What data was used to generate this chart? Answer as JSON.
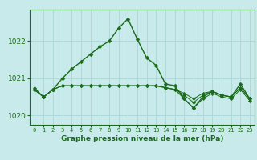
{
  "title": "Graphe pression niveau de la mer (hPa)",
  "x_labels": [
    "0",
    "1",
    "2",
    "3",
    "4",
    "5",
    "6",
    "7",
    "8",
    "9",
    "10",
    "11",
    "12",
    "13",
    "14",
    "15",
    "16",
    "17",
    "18",
    "19",
    "20",
    "21",
    "22",
    "23"
  ],
  "hours": [
    0,
    1,
    2,
    3,
    4,
    5,
    6,
    7,
    8,
    9,
    10,
    11,
    12,
    13,
    14,
    15,
    16,
    17,
    18,
    19,
    20,
    21,
    22,
    23
  ],
  "line_main": [
    1020.7,
    1020.5,
    1020.7,
    1021.0,
    1021.25,
    1021.45,
    1021.65,
    1021.85,
    1022.0,
    1022.35,
    1022.6,
    1022.05,
    1021.55,
    1021.35,
    1020.85,
    1020.8,
    1020.45,
    1020.2,
    1020.5,
    1020.65,
    1020.55,
    1020.5,
    1020.85,
    1020.45
  ],
  "line_a": [
    1020.7,
    1020.5,
    1020.7,
    1020.8,
    1020.8,
    1020.8,
    1020.8,
    1020.8,
    1020.8,
    1020.8,
    1020.8,
    1020.8,
    1020.8,
    1020.8,
    1020.75,
    1020.7,
    1020.45,
    1020.2,
    1020.45,
    1020.6,
    1020.5,
    1020.45,
    1020.7,
    1020.4
  ],
  "line_b": [
    1020.7,
    1020.5,
    1020.7,
    1020.8,
    1020.8,
    1020.8,
    1020.8,
    1020.8,
    1020.8,
    1020.8,
    1020.8,
    1020.8,
    1020.8,
    1020.8,
    1020.75,
    1020.7,
    1020.55,
    1020.35,
    1020.55,
    1020.65,
    1020.55,
    1020.5,
    1020.75,
    1020.45
  ],
  "line_c": [
    1020.75,
    1020.5,
    1020.7,
    1020.8,
    1020.8,
    1020.8,
    1020.8,
    1020.8,
    1020.8,
    1020.8,
    1020.8,
    1020.8,
    1020.8,
    1020.8,
    1020.75,
    1020.7,
    1020.6,
    1020.45,
    1020.6,
    1020.65,
    1020.55,
    1020.5,
    1020.75,
    1020.45
  ],
  "bg_color": "#c8eaea",
  "line_color": "#1a6b1a",
  "grid_color": "#b0d8d8",
  "title_color": "#1a6b1a",
  "ylim": [
    1019.75,
    1022.85
  ],
  "yticks": [
    1020,
    1021,
    1022
  ]
}
